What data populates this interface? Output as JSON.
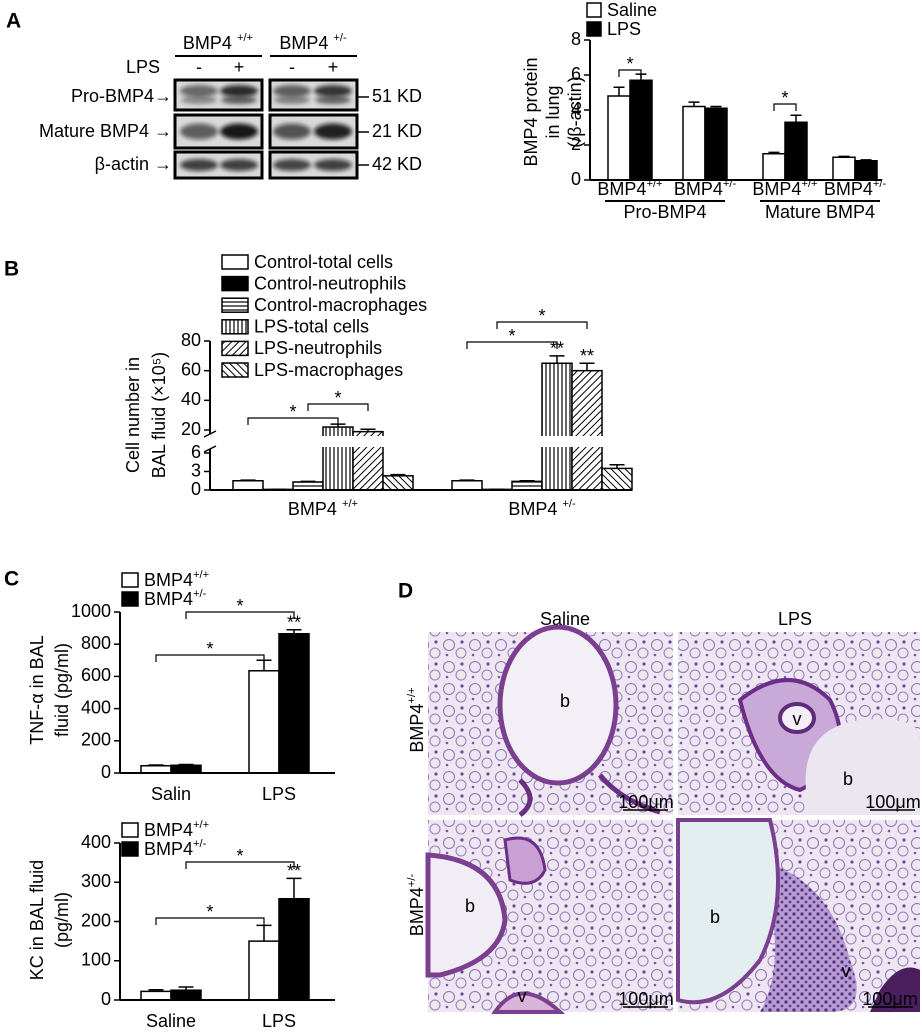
{
  "panel_labels": [
    "A",
    "B",
    "C",
    "D"
  ],
  "blot": {
    "genotypes": [
      "BMP4 +/+",
      "BMP4 +/-"
    ],
    "lps_label": "LPS",
    "lps_states": [
      "-",
      "+",
      "-",
      "+"
    ],
    "rows": [
      {
        "label": "Pro-BMP4→",
        "size": "51 KD"
      },
      {
        "label": "Mature BMP4 →",
        "size": "21 KD"
      },
      {
        "label": "β-actin →",
        "size": "42 KD"
      }
    ]
  },
  "chart_data": [
    {
      "type": "bar",
      "ylabel": [
        "BMP4  protein",
        "in lung",
        "(/β-actin)"
      ],
      "categories": [
        "BMP4+/+",
        "BMP4+/-",
        "BMP4+/+",
        "BMP4+/-"
      ],
      "group_labels": [
        "Pro-BMP4",
        "Mature BMP4"
      ],
      "series": [
        {
          "name": "Saline",
          "color": "#ffffff",
          "values": [
            4.8,
            4.2,
            1.5,
            1.3
          ],
          "errors": [
            0.5,
            0.25,
            0.08,
            0.05
          ]
        },
        {
          "name": "LPS",
          "color": "#000000",
          "values": [
            5.7,
            4.1,
            3.3,
            1.1
          ],
          "errors": [
            0.35,
            0.1,
            0.4,
            0.05
          ]
        }
      ],
      "ylim": [
        0,
        8
      ],
      "yticks": [
        0,
        2,
        4,
        6,
        8
      ],
      "significance": [
        "*",
        "*"
      ]
    },
    {
      "type": "bar",
      "ylabel": [
        "Cell number in",
        "BAL fluid (×10⁵)"
      ],
      "categories": [
        "BMP4 +/+",
        "BMP4 +/-"
      ],
      "series": [
        {
          "name": "Control-total cells",
          "color": "#ffffff",
          "values": [
            1.5,
            1.5
          ],
          "errors": [
            0.1,
            0.1
          ]
        },
        {
          "name": "Control-neutrophils",
          "color": "#000000",
          "values": [
            0.1,
            0.1
          ],
          "errors": [
            0,
            0
          ]
        },
        {
          "name": "Control-macrophages",
          "color": "#000000",
          "pattern": "horizontal",
          "values": [
            1.3,
            1.4
          ],
          "errors": [
            0.1,
            0.1
          ]
        },
        {
          "name": "LPS-total cells",
          "color": "#000000",
          "pattern": "vertical",
          "values": [
            22,
            65
          ],
          "errors": [
            2,
            5
          ]
        },
        {
          "name": "LPS-neutrophils",
          "color": "#000000",
          "pattern": "diagonal",
          "values": [
            19,
            60
          ],
          "errors": [
            1.5,
            5
          ]
        },
        {
          "name": "LPS-macrophages",
          "color": "#000000",
          "pattern": "back-diagonal",
          "values": [
            2.3,
            3.5
          ],
          "errors": [
            0.2,
            0.6
          ]
        }
      ],
      "ylim": [
        0,
        80
      ],
      "yticks": [
        0,
        3,
        6,
        20,
        40,
        60,
        80
      ],
      "axis_break": [
        6,
        20
      ],
      "significance": [
        "*",
        "*",
        "*",
        "*",
        "**",
        "**"
      ]
    },
    {
      "type": "bar",
      "ylabel": [
        "TNF-α in BAL",
        "fluid (pg/ml)"
      ],
      "categories": [
        "Salin",
        "LPS"
      ],
      "series": [
        {
          "name": "BMP4+/+",
          "color": "#ffffff",
          "values": [
            45,
            635
          ],
          "errors": [
            5,
            65
          ]
        },
        {
          "name": "BMP4+/-",
          "color": "#000000",
          "values": [
            48,
            865
          ],
          "errors": [
            5,
            25
          ]
        }
      ],
      "ylim": [
        0,
        1000
      ],
      "yticks": [
        0,
        200,
        400,
        600,
        800,
        1000
      ],
      "significance": [
        "*",
        "*",
        "**"
      ]
    },
    {
      "type": "bar",
      "ylabel": [
        "KC  in BAL fluid",
        "(pg/ml)"
      ],
      "categories": [
        "Saline",
        "LPS"
      ],
      "series": [
        {
          "name": "BMP4+/+",
          "color": "#ffffff",
          "values": [
            22,
            150
          ],
          "errors": [
            4,
            40
          ]
        },
        {
          "name": "BMP4+/-",
          "color": "#000000",
          "values": [
            25,
            258
          ],
          "errors": [
            8,
            52
          ]
        }
      ],
      "ylim": [
        0,
        400
      ],
      "yticks": [
        0,
        100,
        200,
        300,
        400
      ],
      "significance": [
        "*",
        "*",
        "**"
      ]
    }
  ],
  "histology": {
    "columns": [
      "Saline",
      "LPS"
    ],
    "rows": [
      "BMP4+/+",
      "BMP4+/-"
    ],
    "tiles": [
      {
        "marks": [
          "b"
        ],
        "scale": "100μm"
      },
      {
        "marks": [
          "v",
          "b"
        ],
        "scale": "100μm"
      },
      {
        "marks": [
          "b",
          "v"
        ],
        "scale": "100μm"
      },
      {
        "marks": [
          "b",
          "v"
        ],
        "scale": "100μm"
      }
    ]
  }
}
